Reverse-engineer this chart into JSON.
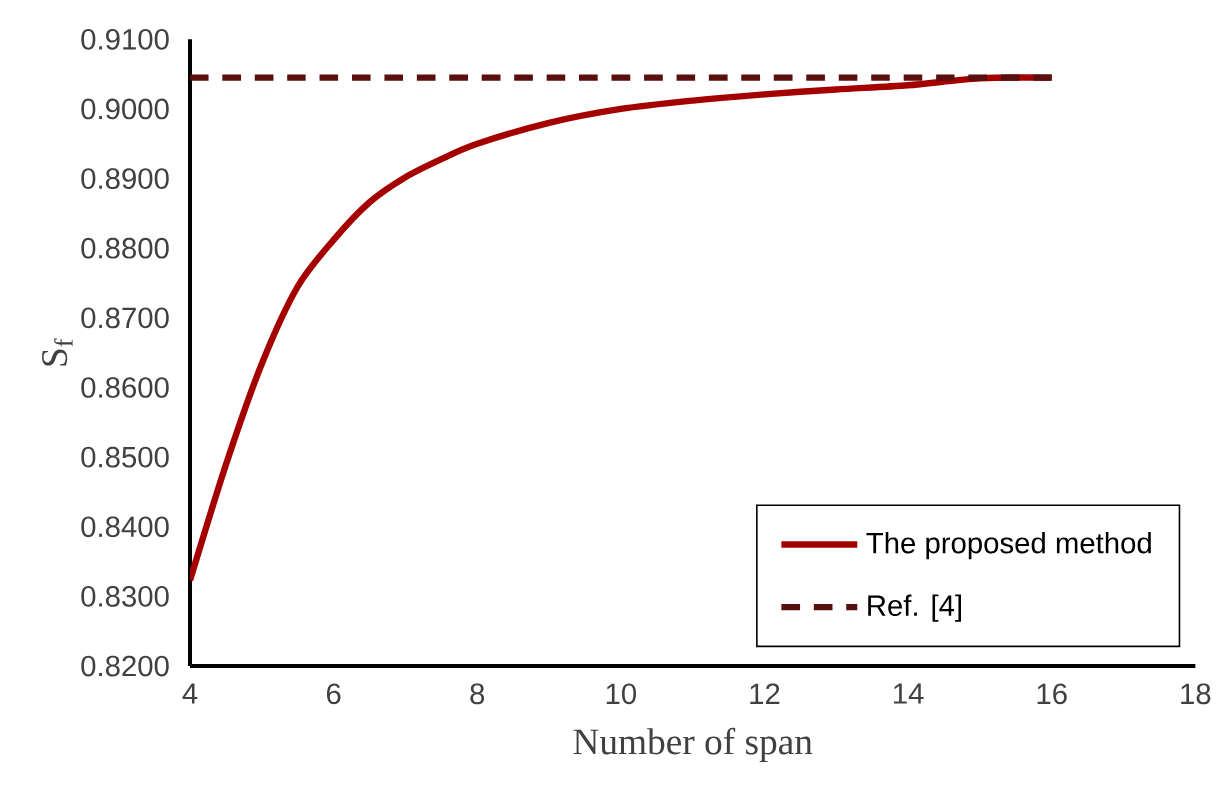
{
  "chart_data": {
    "type": "line",
    "xlabel": "Number of span",
    "ylabel": "S$_{f}$",
    "xlim": [
      4,
      18
    ],
    "xticks": [
      4,
      6,
      8,
      10,
      12,
      14,
      16,
      18
    ],
    "ylim": [
      0.82,
      0.91
    ],
    "yticks": [
      {
        "value": 0.82,
        "label": "0.8200"
      },
      {
        "value": 0.83,
        "label": "0.8300"
      },
      {
        "value": 0.84,
        "label": "0.8400"
      },
      {
        "value": 0.85,
        "label": "0.8500"
      },
      {
        "value": 0.86,
        "label": "0.8600"
      },
      {
        "value": 0.87,
        "label": "0.8700"
      },
      {
        "value": 0.88,
        "label": "0.8800"
      },
      {
        "value": 0.89,
        "label": "0.8900"
      },
      {
        "value": 0.9,
        "label": "0.9000"
      },
      {
        "value": 0.91,
        "label": "0.9100"
      }
    ],
    "grid": false,
    "legend": "bottom right",
    "marker": "none",
    "series": [
      {
        "name": "The proposed method",
        "color": "#a50000",
        "line_style": "solid",
        "x": [
          4,
          4.5,
          5,
          5.5,
          6,
          6.5,
          7,
          7.5,
          8,
          9,
          10,
          11,
          12,
          13,
          14,
          15,
          16
        ],
        "values": [
          0.8323,
          0.8489,
          0.8634,
          0.8745,
          0.8812,
          0.8866,
          0.8902,
          0.8928,
          0.895,
          0.898,
          0.9,
          0.9012,
          0.9021,
          0.9028,
          0.9034,
          0.9044,
          0.9045
        ]
      },
      {
        "name": "Ref. [4]",
        "color": "#5a0f0f",
        "line_style": "dashed",
        "x": [
          4,
          16
        ],
        "values": [
          0.9045,
          0.9045
        ]
      }
    ]
  }
}
